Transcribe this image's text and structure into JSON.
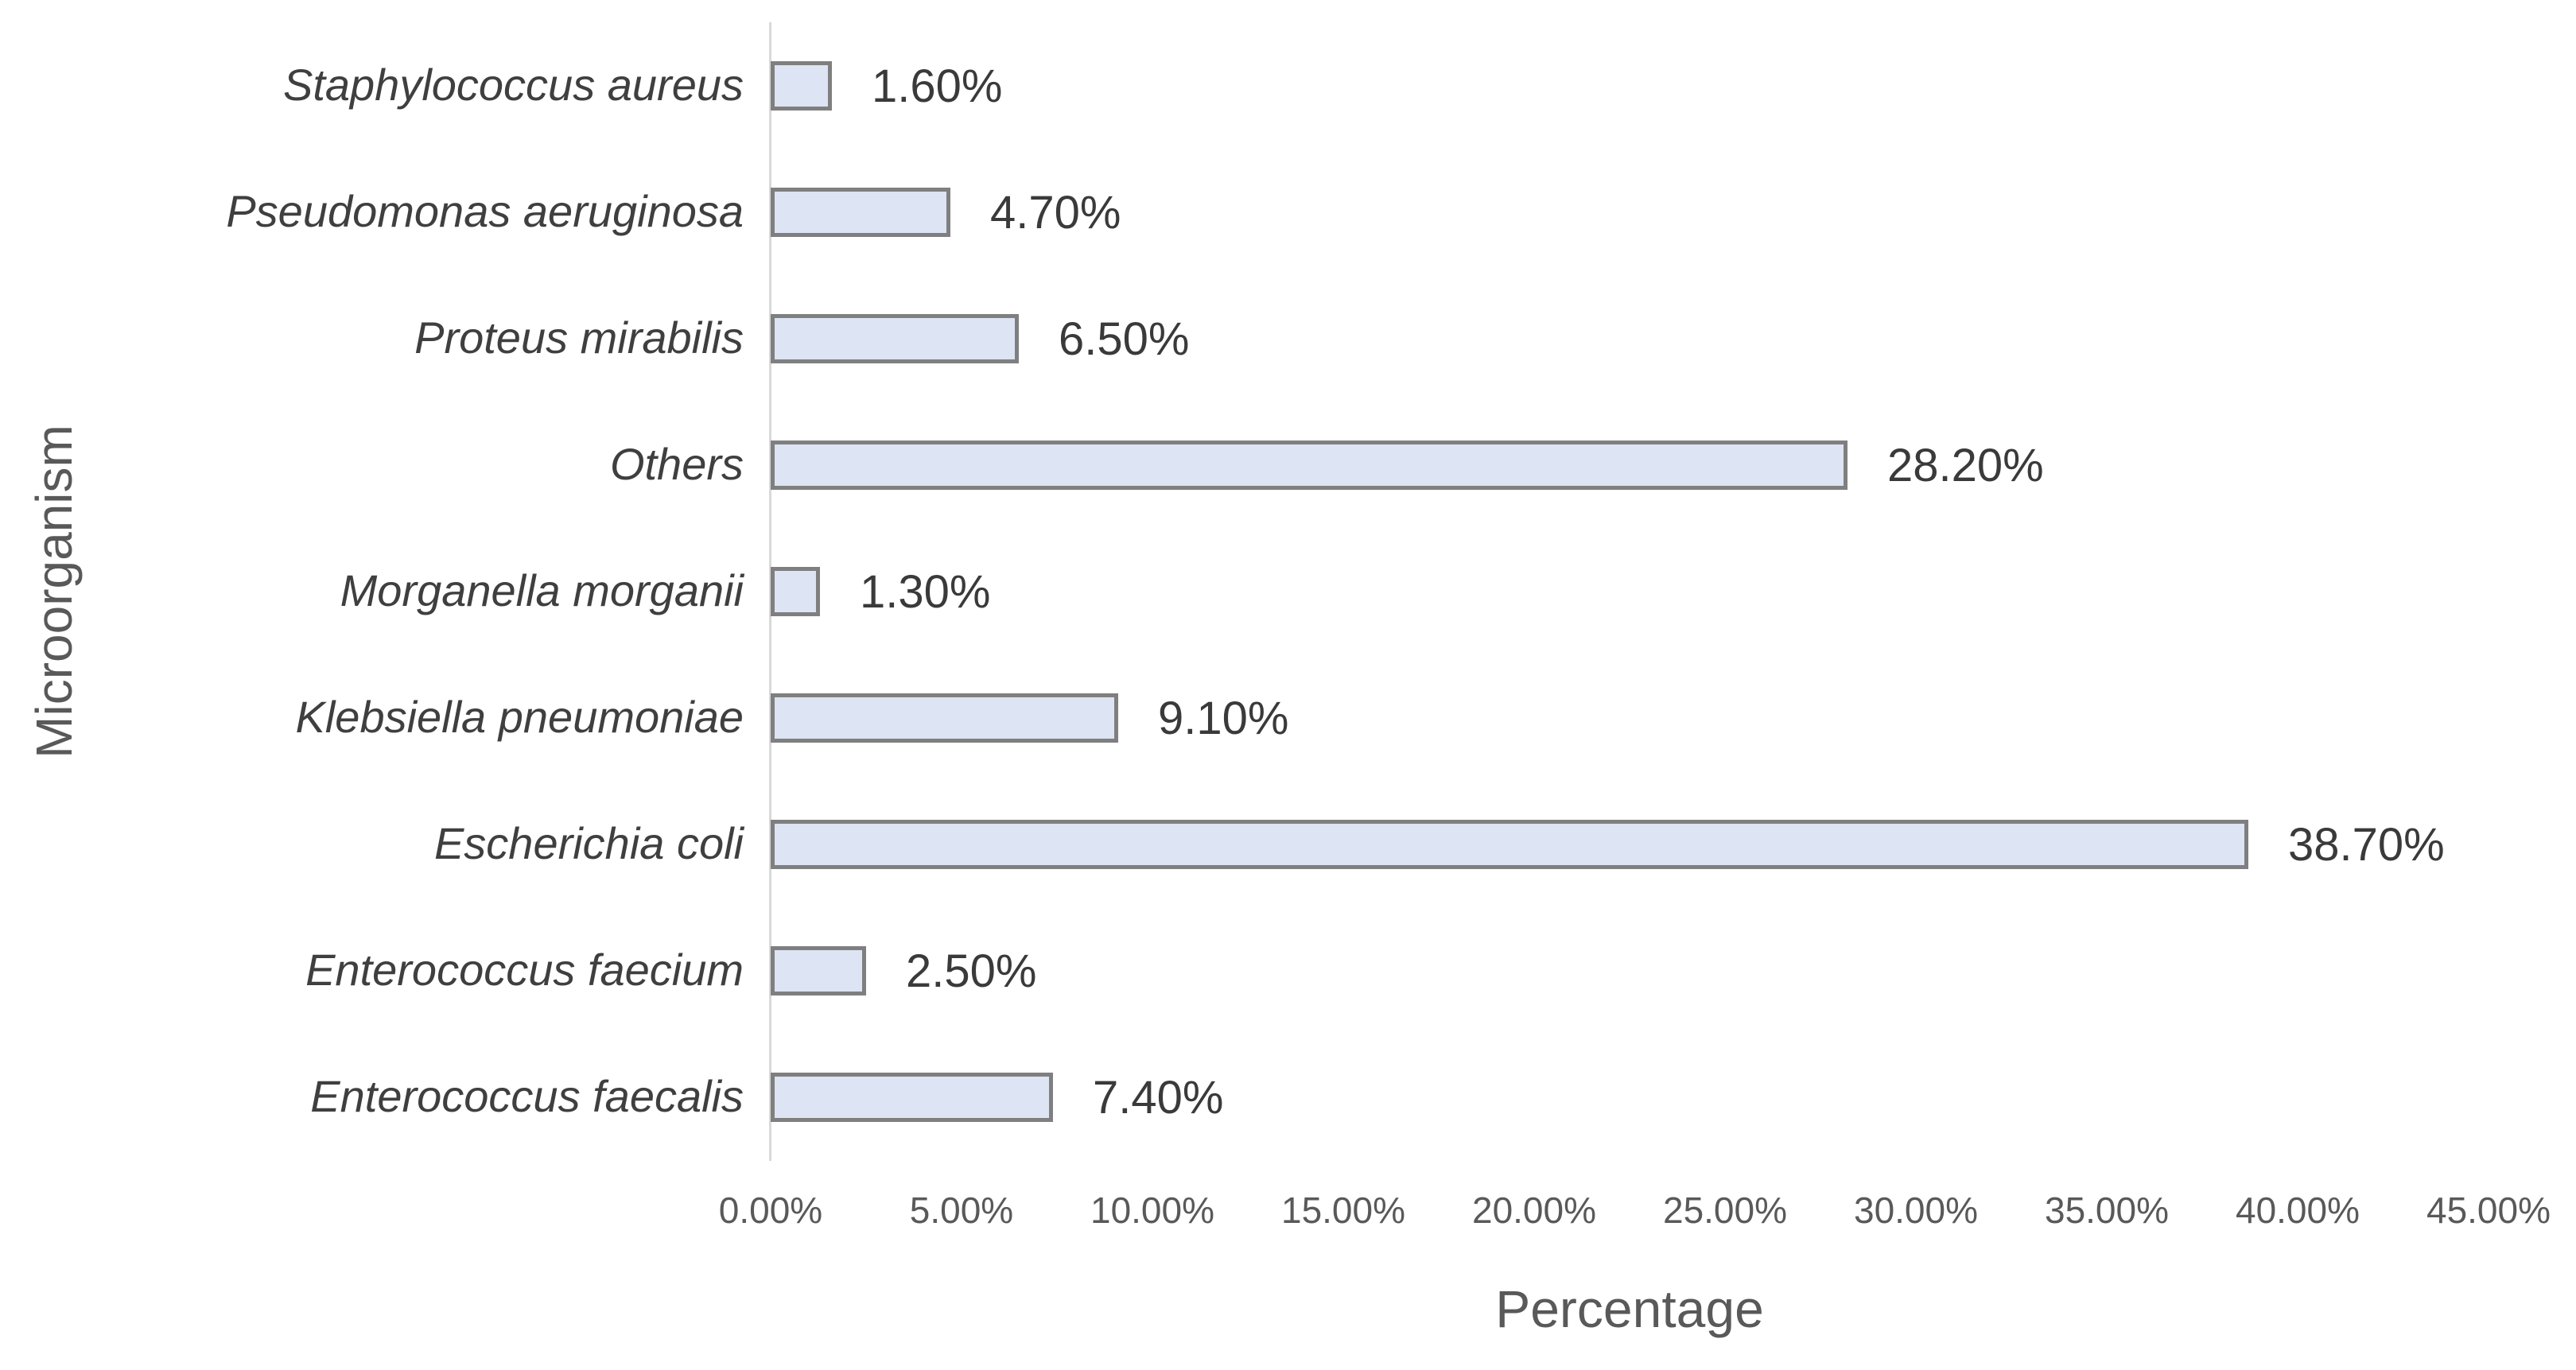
{
  "chart_data": {
    "type": "bar",
    "orientation": "horizontal",
    "title": "",
    "xlabel": "Percentage",
    "ylabel": "Microorganism",
    "xlim": [
      0,
      45
    ],
    "grid": false,
    "legend_position": "none",
    "x_ticks": [
      "0.00%",
      "5.00%",
      "10.00%",
      "15.00%",
      "20.00%",
      "25.00%",
      "30.00%",
      "35.00%",
      "40.00%",
      "45.00%"
    ],
    "categories": [
      "Staphylococcus aureus",
      "Pseudomonas aeruginosa",
      "Proteus mirabilis",
      "Others",
      "Morganella morganii",
      "Klebsiella pneumoniae",
      "Escherichia coli",
      "Enterococcus faecium",
      "Enterococcus faecalis"
    ],
    "values": [
      1.6,
      4.7,
      6.5,
      28.2,
      1.3,
      9.1,
      38.7,
      2.5,
      7.4
    ],
    "data_labels": [
      "1.60%",
      "4.70%",
      "6.50%",
      "28.20%",
      "1.30%",
      "9.10%",
      "38.70%",
      "2.50%",
      "7.40%"
    ],
    "colors": {
      "bar_fill": "#dde4f3",
      "bar_border": "#7f7f7f",
      "axis_line": "#d9d9d9",
      "category_text": "#3f3f3f",
      "value_text": "#3a3a3a",
      "tick_text": "#595959",
      "axis_title_text": "#595959"
    }
  }
}
